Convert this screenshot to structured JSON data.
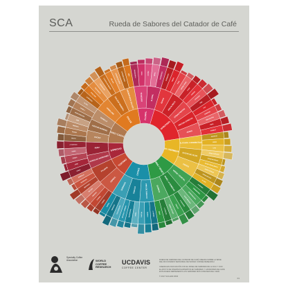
{
  "header": {
    "brand": "SCA",
    "title": "Rueda de Sabores del Catador de Café"
  },
  "wheel": {
    "inner": [
      {
        "label": "FLORAL",
        "color": "#d6336b",
        "weight": 1
      },
      {
        "label": "AFRUTADO",
        "color": "#e0252c",
        "weight": 2.4
      },
      {
        "label": "ÁCIDO / FERMENTADO",
        "color": "#e8b626",
        "weight": 1.6
      },
      {
        "label": "VERDE / VEGETAL",
        "color": "#2e9a45",
        "weight": 1.7
      },
      {
        "label": "OTROS",
        "color": "#1a8fa8",
        "weight": 1.6
      },
      {
        "label": "TOSTADO",
        "color": "#c74933",
        "weight": 1.2
      },
      {
        "label": "ESPECIAS",
        "color": "#a9273a",
        "weight": 1
      },
      {
        "label": "NUEZ / CACAO",
        "color": "#b07a50",
        "weight": 1.3
      },
      {
        "label": "DULCE",
        "color": "#e07a20",
        "weight": 1.6
      }
    ],
    "labels_middle": [
      "TÉ NEGRO",
      "FLORAL",
      "BAYAS",
      "FRUTA SECA",
      "OTRAS FRUTAS",
      "FRUTAS CÍTRICAS",
      "AGRIO",
      "ALCOHOL / FERMENTADO",
      "ACEITE DE OLIVA",
      "CRUDO",
      "VERDE / VEGETAL",
      "PAPEL / A HUMEDAD",
      "QUÍMICO",
      "PIPA DE TABACO",
      "TABACO",
      "QUEMADO",
      "CEREAL",
      "PICANTE",
      "ESPECIAS MARRONES",
      "NUEZ",
      "CACAO",
      "AZÚCAR MORENO",
      "VAINILLA",
      "VAINILLINA",
      "DULZOR GENERAL",
      "AROMÁTICOS DULCES"
    ],
    "labels_outer": [
      "MANZANILLA",
      "ROSA",
      "JAZMÍN",
      "MORA",
      "FRAMBUESA",
      "ARÁNDANO",
      "FRESA",
      "PASA",
      "CIRUELA PASA",
      "COCO",
      "CEREZA",
      "GRANADA",
      "PIÑA",
      "UVA",
      "MANZANA",
      "MELOCOTÓN",
      "PERA",
      "POMELO",
      "NARANJA",
      "LIMÓN",
      "LIMA",
      "ÁCIDO ACÉTICO",
      "ÁCIDO BUTÍRICO",
      "ÁCIDO ISOVALÉRICO",
      "ÁCIDO CÍTRICO",
      "ÁCIDO MÁLICO",
      "A VINO",
      "A WHISKY",
      "FERMENTADO",
      "SOBREMADURO",
      "BAJO MADURO",
      "A GUISANTE",
      "FRESCO",
      "VERDE OSCURO",
      "A VEGETAL",
      "HENO",
      "A HIERBA",
      "RANCIO",
      "CARTÓN",
      "PAPEL",
      "AMADERADO",
      "MOHOSO / HÚMEDO",
      "POLVORIENTO",
      "TERROSO",
      "ANIMAL",
      "CARNE",
      "A FENOL",
      "AMARGO",
      "SALADO",
      "MEDICINAL",
      "PETRÓLEO",
      "ZORRILLO",
      "GOMA",
      "ACRE",
      "CENIZA",
      "HUMO",
      "A TOSTADO",
      "MALTA",
      "GRANO",
      "PIMIENTA",
      "ANÍS",
      "NUEZ MOSCADA",
      "CANELA",
      "CLAVO",
      "ALMENDRA",
      "AVELLANA",
      "CACAHUETE",
      "CHOCOLATE",
      "CHOCOLATE NEGRO",
      "MELAZA",
      "JARABE DE ARCE",
      "CARAMELIZADO",
      "MIEL"
    ]
  },
  "footer": {
    "sca_logo_text": "Specialty Coffee Association",
    "wcr_text": "WORLD COFFEE RESEARCH",
    "ucd_main": "UCDAVIS",
    "ucd_sub": "COFFEE CENTER",
    "notes": [
      "RUEDA DE SABORES DEL CATADOR DE CAFÉ CREADA SOBRE LA BASE",
      "DEL DICCIONARIO SENSORIAL DE WORLD COFFEE RESEARCH",
      "",
      "CREADA EN ASOCIACIÓN CON EL PANEL DE SABORES DE LA SCA Y CON",
      "EL APOYO DE DIVERSOS EXPERTOS EN SABORES Y CATADORES DE CAFÉ.",
      "ESTA RUEDA REPRESENTA LOS SABORES MÁS COMUNES DEL CAFÉ.",
      "",
      "© 2017 SCA AND WCR"
    ],
    "page_number": "01"
  },
  "colors": {
    "poster_bg": "#d5d6d1",
    "center_hole": "#d5d6d1",
    "text_dark": "#5a5b58"
  }
}
